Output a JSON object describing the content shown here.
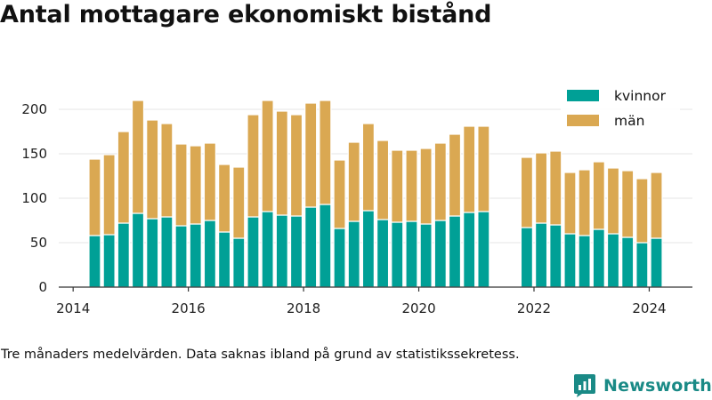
{
  "title": "Antal mottagare ekonomiskt bistånd",
  "footnote": "Tre månaders medelvärden. Data saknas ibland på grund av statistikssekretess.",
  "brand": {
    "name": "Newsworthy",
    "color": "#1a8a86"
  },
  "chart_data": {
    "type": "bar",
    "stacked": true,
    "title": "Antal mottagare ekonomiskt bistånd",
    "xlabel": "",
    "ylabel": "",
    "ylim": [
      0,
      215
    ],
    "xlim": [
      2013.75,
      2024.75
    ],
    "yticks": [
      0,
      50,
      100,
      150,
      200
    ],
    "xticks": [
      2014,
      2016,
      2018,
      2020,
      2022,
      2024
    ],
    "grid": true,
    "legend_position": "top-right",
    "x": [
      2014.375,
      2014.625,
      2014.875,
      2015.125,
      2015.375,
      2015.625,
      2015.875,
      2016.125,
      2016.375,
      2016.625,
      2016.875,
      2017.125,
      2017.375,
      2017.625,
      2017.875,
      2018.125,
      2018.375,
      2018.625,
      2018.875,
      2019.125,
      2019.375,
      2019.625,
      2019.875,
      2020.125,
      2020.375,
      2020.625,
      2020.875,
      2021.125,
      2021.875,
      2022.125,
      2022.375,
      2022.625,
      2022.875,
      2023.125,
      2023.375,
      2023.625,
      2023.875,
      2024.125
    ],
    "series": [
      {
        "name": "kvinnor",
        "color": "#00a096",
        "values": [
          58,
          59,
          72,
          83,
          77,
          79,
          69,
          71,
          75,
          62,
          55,
          79,
          85,
          81,
          80,
          90,
          93,
          66,
          74,
          86,
          76,
          73,
          74,
          71,
          75,
          80,
          84,
          85,
          67,
          72,
          70,
          60,
          58,
          65,
          60,
          56,
          50,
          55
        ]
      },
      {
        "name": "män",
        "color": "#daa852",
        "values": [
          86,
          90,
          103,
          127,
          111,
          105,
          92,
          88,
          87,
          76,
          80,
          115,
          125,
          117,
          114,
          117,
          117,
          77,
          89,
          98,
          89,
          81,
          80,
          85,
          87,
          92,
          97,
          96,
          79,
          79,
          83,
          69,
          74,
          76,
          74,
          75,
          72,
          74
        ]
      }
    ]
  }
}
